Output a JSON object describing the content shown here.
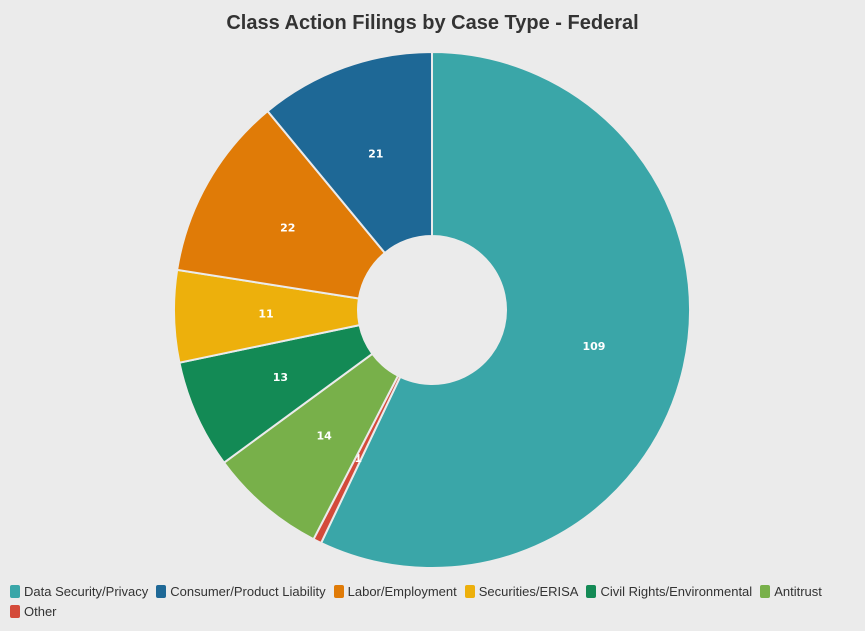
{
  "chart_data": {
    "type": "pie",
    "title": "Class Action Filings by Case Type - Federal",
    "categories": [
      "Data Security/Privacy",
      "Consumer/Product Liability",
      "Labor/Employment",
      "Securities/ERISA",
      "Civil Rights/Environmental",
      "Antitrust",
      "Other"
    ],
    "values": [
      109,
      21,
      22,
      11,
      13,
      14,
      1
    ],
    "colors": [
      "#3aa6a8",
      "#1e6896",
      "#e07b07",
      "#edb00c",
      "#138a55",
      "#78b04a",
      "#d44a3a"
    ],
    "donut": true,
    "legend_position": "bottom-left"
  }
}
